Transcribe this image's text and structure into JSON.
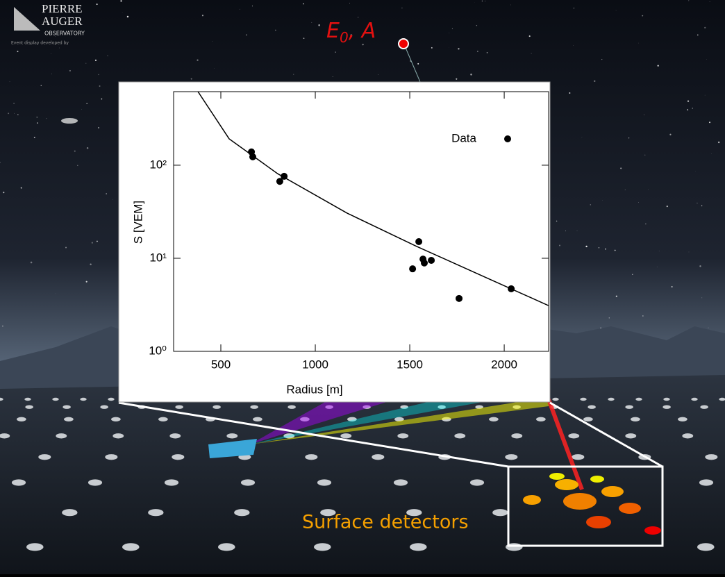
{
  "logo": {
    "line1": "PIERRE",
    "line2": "AUGER",
    "line3": "OBSERVATORY",
    "credit": "Event display developed by"
  },
  "primary_label": {
    "energy": "E",
    "energy_subscript": "0",
    "mass": ", A"
  },
  "detector_label": "Surface detectors",
  "chart_data": {
    "type": "scatter",
    "xlabel": "Radius [m]",
    "ylabel": "S [VEM]",
    "xlim": [
      250,
      2235
    ],
    "xticks": [
      500,
      1000,
      1500,
      2000
    ],
    "ylim": [
      1,
      617
    ],
    "yscale": "log",
    "yticks": [
      {
        "value": 1,
        "label": "10⁰"
      },
      {
        "value": 10,
        "label": "10¹"
      },
      {
        "value": 100,
        "label": "10²"
      }
    ],
    "legend": "upper right",
    "series": [
      {
        "name": "Data",
        "color": "#000000",
        "x": [
          662,
          669,
          812,
          835,
          1548,
          1515,
          1570,
          1577,
          1614,
          1761,
          2037
        ],
        "values": [
          139,
          123,
          67,
          76,
          15.1,
          7.7,
          9.8,
          8.9,
          9.5,
          3.7,
          4.7
        ]
      }
    ],
    "fit": {
      "color": "#000000",
      "x": [
        379,
        544,
        801,
        1169,
        1537,
        1904,
        2235
      ],
      "values": [
        617,
        192,
        81,
        30.5,
        13.4,
        6.2,
        3.1
      ]
    }
  }
}
